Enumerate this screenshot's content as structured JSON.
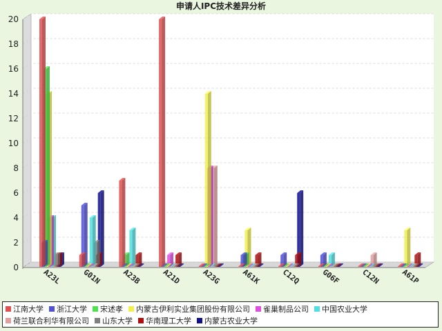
{
  "chart_data": {
    "type": "bar",
    "title": "申请人IPC技术差异分析",
    "xlabel": "",
    "ylabel": "",
    "ylim": [
      0,
      20
    ],
    "yticks": [
      0,
      2,
      4,
      6,
      8,
      10,
      12,
      14,
      16,
      18,
      20
    ],
    "grid": true,
    "legend_position": "bottom",
    "categories": [
      "A23L",
      "G01N",
      "A23B",
      "A21D",
      "A23G",
      "A61K",
      "C12Q",
      "G06F",
      "C12N",
      "A61P"
    ],
    "series": [
      {
        "name": "江南大学",
        "color": "#e05050",
        "values": [
          20,
          1,
          7,
          20,
          0,
          0,
          0,
          0,
          0,
          0
        ]
      },
      {
        "name": "浙江大学",
        "color": "#5050d8",
        "values": [
          2,
          5,
          0,
          0,
          0,
          1,
          1,
          1,
          0,
          0
        ]
      },
      {
        "name": "宋述孝",
        "color": "#50e050",
        "values": [
          16,
          0,
          1,
          0,
          0,
          1,
          0,
          0,
          0,
          0
        ]
      },
      {
        "name": "内蒙古伊利实业集团股份有限公司",
        "color": "#f0f050",
        "values": [
          14,
          0,
          0,
          0,
          14,
          3,
          0,
          0,
          0,
          3
        ]
      },
      {
        "name": "雀巢制品公司",
        "color": "#e050e0",
        "values": [
          4,
          0,
          0,
          1,
          8,
          0,
          0,
          0,
          0,
          0
        ]
      },
      {
        "name": "中国农业大学",
        "color": "#50e0e0",
        "values": [
          4,
          4,
          3,
          0,
          0,
          0,
          0,
          1,
          0,
          0
        ]
      },
      {
        "name": "荷兰联合利华有限公司",
        "color": "#e0a0a0",
        "values": [
          1,
          0,
          0,
          0,
          8,
          0,
          0,
          0,
          1,
          0
        ]
      },
      {
        "name": "山东大学",
        "color": "#808080",
        "values": [
          1,
          2,
          0,
          0,
          0,
          0,
          0,
          0,
          0,
          0
        ]
      },
      {
        "name": "华南理工大学",
        "color": "#b01010",
        "values": [
          1,
          1,
          1,
          1,
          0,
          1,
          1,
          0,
          0,
          1
        ]
      },
      {
        "name": "内蒙古农业大学",
        "color": "#101090",
        "values": [
          1,
          6,
          0,
          0,
          0,
          0,
          6,
          0,
          0,
          0
        ]
      }
    ]
  }
}
